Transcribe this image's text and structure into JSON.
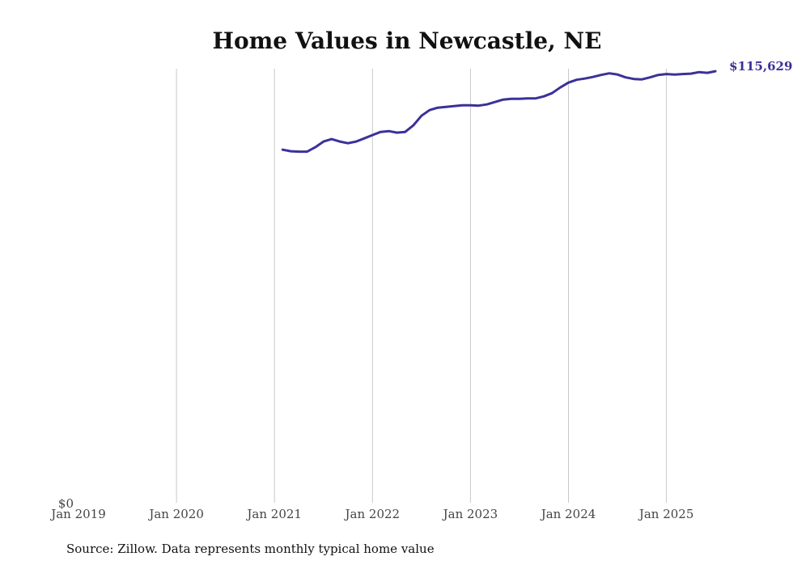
{
  "chart_data": {
    "type": "line",
    "title": "Home Values in Newcastle, NE",
    "xlabel": "",
    "ylabel": "",
    "source": "Source: Zillow. Data represents monthly typical home value",
    "x_ticks": [
      "Jan 2019",
      "Jan 2020",
      "Jan 2021",
      "Jan 2022",
      "Jan 2023",
      "Jan 2024",
      "Jan 2025"
    ],
    "y_ticks": [
      {
        "value": 0,
        "label": "$0"
      }
    ],
    "ylim": [
      0,
      116300
    ],
    "xlim_months_from_jan_2019": [
      0,
      79
    ],
    "grid": "vertical",
    "end_label": "$115,629",
    "line_color": "#3b3199",
    "series": [
      {
        "name": "Typical home value",
        "start_month": "Feb 2021",
        "start_index_from_jan_2019": 25,
        "values": [
          94610,
          94180,
          94070,
          94070,
          95260,
          96780,
          97430,
          96780,
          96340,
          96780,
          97640,
          98510,
          99370,
          99590,
          99160,
          99370,
          101110,
          103700,
          105220,
          105870,
          106080,
          106300,
          106520,
          106520,
          106410,
          106730,
          107380,
          108030,
          108250,
          108250,
          108360,
          108360,
          108900,
          109770,
          111280,
          112580,
          113340,
          113660,
          114100,
          114640,
          115070,
          114750,
          113990,
          113560,
          113450,
          113990,
          114640,
          114860,
          114750,
          114860,
          114970,
          115400,
          115190,
          115629
        ]
      }
    ]
  }
}
